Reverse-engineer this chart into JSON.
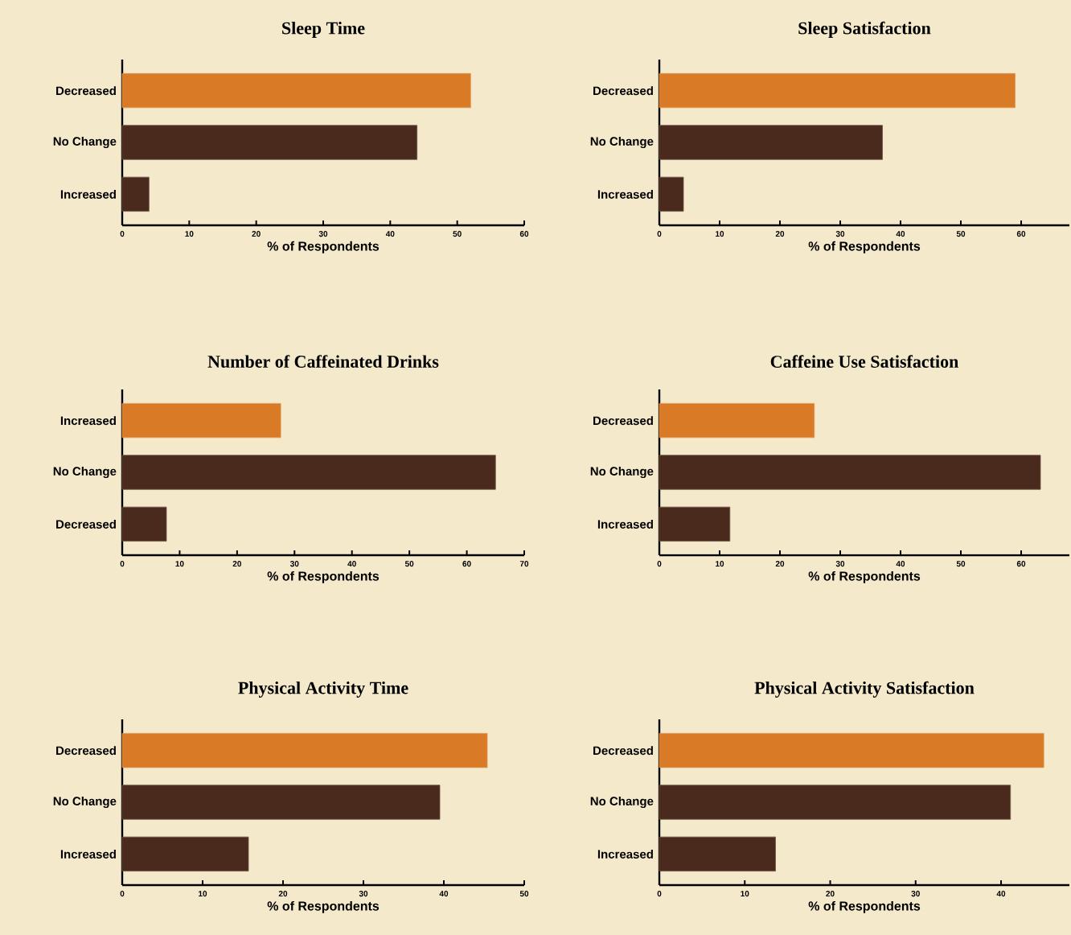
{
  "chart_data": [
    {
      "type": "bar",
      "orientation": "horizontal",
      "title": "Sleep Time",
      "xlabel": "% of Respondents",
      "categories": [
        "Decreased",
        "No Change",
        "Increased"
      ],
      "values": [
        52,
        44,
        4
      ],
      "colors": [
        "#d97b26",
        "#4a2a1c",
        "#4a2a1c"
      ],
      "xlim": [
        0,
        60
      ],
      "xticks": [
        0,
        10,
        20,
        30,
        40,
        50,
        60
      ]
    },
    {
      "type": "bar",
      "orientation": "horizontal",
      "title": "Sleep Satisfaction",
      "xlabel": "% of Respondents",
      "categories": [
        "Decreased",
        "No Change",
        "Increased"
      ],
      "values": [
        59,
        37,
        4
      ],
      "colors": [
        "#d97b26",
        "#4a2a1c",
        "#4a2a1c"
      ],
      "xlim": [
        0,
        68
      ],
      "xticks": [
        0,
        10,
        20,
        30,
        40,
        50,
        60
      ]
    },
    {
      "type": "bar",
      "orientation": "horizontal",
      "title": "Number of Caffeinated Drinks",
      "xlabel": "% of Respondents",
      "categories": [
        "Increased",
        "No Change",
        "Decreased"
      ],
      "values": [
        27.6,
        65,
        7.7
      ],
      "colors": [
        "#d97b26",
        "#4a2a1c",
        "#4a2a1c"
      ],
      "xlim": [
        0,
        70
      ],
      "xticks": [
        0,
        10,
        20,
        30,
        40,
        50,
        60,
        70
      ]
    },
    {
      "type": "bar",
      "orientation": "horizontal",
      "title": "Caffeine Use Satisfaction",
      "xlabel": "% of Respondents",
      "categories": [
        "Decreased",
        "No Change",
        "Increased"
      ],
      "values": [
        25.7,
        63.2,
        11.7
      ],
      "colors": [
        "#d97b26",
        "#4a2a1c",
        "#4a2a1c"
      ],
      "xlim": [
        0,
        68
      ],
      "xticks": [
        0,
        10,
        20,
        30,
        40,
        50,
        60
      ]
    },
    {
      "type": "bar",
      "orientation": "horizontal",
      "title": "Physical Activity Time",
      "xlabel": "% of Respondents",
      "categories": [
        "Decreased",
        "No Change",
        "Increased"
      ],
      "values": [
        45.4,
        39.5,
        15.7
      ],
      "colors": [
        "#d97b26",
        "#4a2a1c",
        "#4a2a1c"
      ],
      "xlim": [
        0,
        50
      ],
      "xticks": [
        0,
        10,
        20,
        30,
        40,
        50
      ]
    },
    {
      "type": "bar",
      "orientation": "horizontal",
      "title": "Physical Activity Satisfaction",
      "xlabel": "% of Respondents",
      "categories": [
        "Decreased",
        "No Change",
        "Increased"
      ],
      "values": [
        45,
        41.1,
        13.6
      ],
      "colors": [
        "#d97b26",
        "#4a2a1c",
        "#4a2a1c"
      ],
      "xlim": [
        0,
        48
      ],
      "xticks": [
        0,
        10,
        20,
        30,
        40
      ]
    }
  ]
}
